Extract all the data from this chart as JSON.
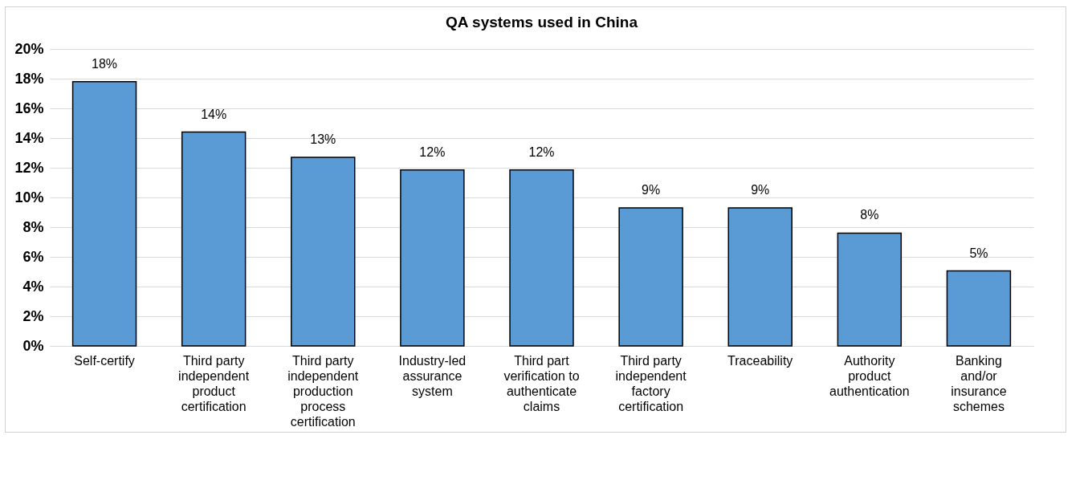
{
  "chart_data": {
    "type": "bar",
    "title": "QA systems used in China",
    "categories": [
      "Self-certify",
      "Third party independent product certification",
      "Third party independent production process certification",
      "Industry-led assurance system",
      "Third part verification to authenticate claims",
      "Third party independent factory certification",
      "Traceability",
      "Authority product authentication",
      "Banking and/or insurance schemes"
    ],
    "values": [
      17.8,
      14.4,
      12.7,
      11.85,
      11.85,
      9.3,
      9.3,
      7.6,
      5.05
    ],
    "value_labels": [
      "18%",
      "14%",
      "13%",
      "12%",
      "12%",
      "9%",
      "9%",
      "8%",
      "5%"
    ],
    "color": "#5b9bd5",
    "ylim": [
      0,
      20
    ],
    "yticks": [
      {
        "value": 0,
        "label": "0%"
      },
      {
        "value": 2,
        "label": "2%"
      },
      {
        "value": 4,
        "label": "4%"
      },
      {
        "value": 6,
        "label": "6%"
      },
      {
        "value": 8,
        "label": "8%"
      },
      {
        "value": 10,
        "label": "10%"
      },
      {
        "value": 12,
        "label": "12%"
      },
      {
        "value": 14,
        "label": "14%"
      },
      {
        "value": 16,
        "label": "16%"
      },
      {
        "value": 18,
        "label": "18%"
      },
      {
        "value": 20,
        "label": "20%"
      }
    ],
    "grid": true
  }
}
